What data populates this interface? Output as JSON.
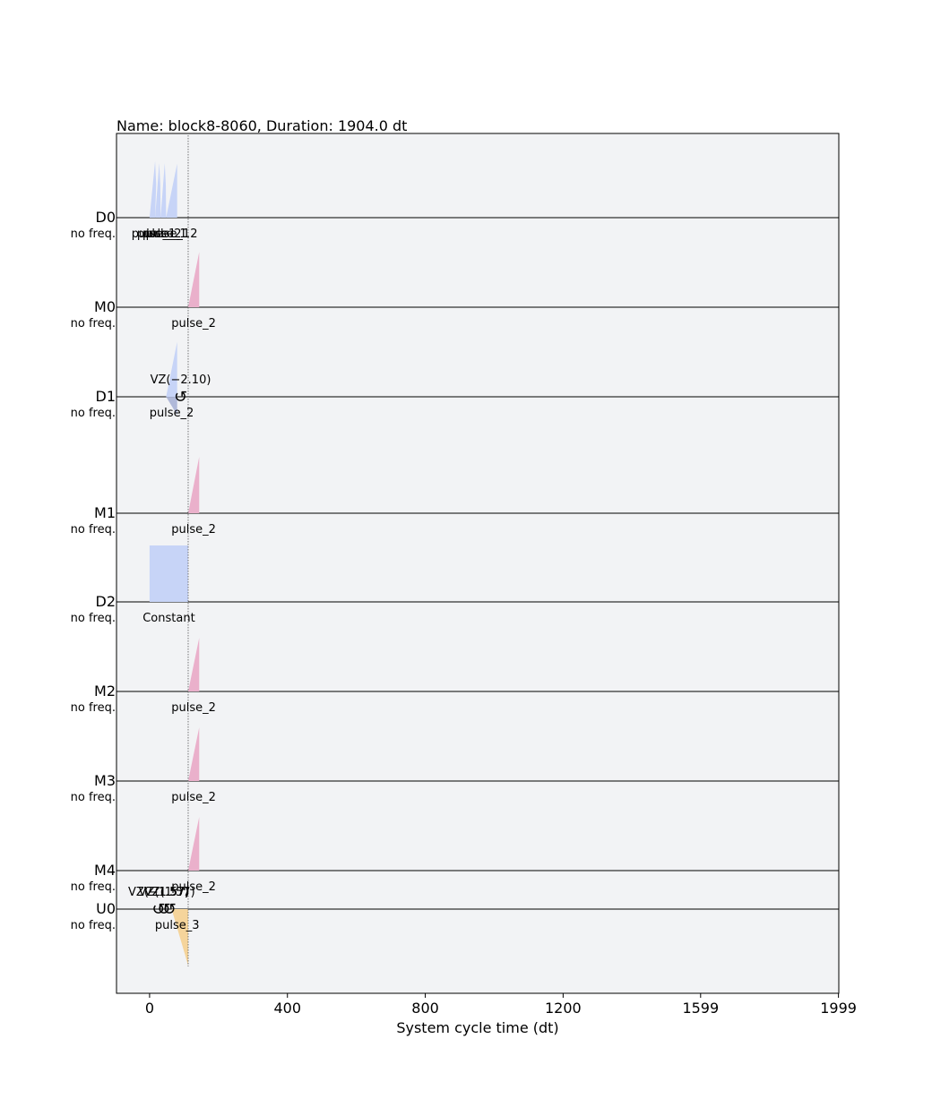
{
  "chart_data": {
    "type": "pulse-schedule",
    "title": "Name: block8-8060, Duration: 1904.0 dt",
    "xlabel": "System cycle time (dt)",
    "xlim": [
      -96,
      2000
    ],
    "xticks": [
      0,
      400,
      800,
      1200,
      1599,
      1999
    ],
    "xtick_labels": [
      "0",
      "400",
      "800",
      "1200",
      "1599",
      "1999"
    ],
    "barrier_t": 112,
    "colors": {
      "panel": "#f2f3f5",
      "drive": "#c7d4f7",
      "drive_imag": "#a9b3d6",
      "measure": "#eab0cb",
      "control": "#f5d49b"
    },
    "channels": [
      {
        "name": "D0",
        "freq": "no freq.",
        "pulses": [
          {
            "kind": "drive",
            "shape": "spike",
            "t0": 0,
            "t1": 16,
            "peak": 16,
            "amp": 0.9
          },
          {
            "kind": "drive",
            "shape": "spike",
            "t0": 16,
            "t1": 32,
            "peak": 28,
            "amp": 0.87
          },
          {
            "kind": "drive",
            "shape": "spike",
            "t0": 32,
            "t1": 48,
            "peak": 44,
            "amp": 0.87
          },
          {
            "kind": "drive",
            "shape": "ramp",
            "t0": 48,
            "t1": 80,
            "amp": 0.86
          }
        ],
        "labels": [
          {
            "t": 12,
            "text": "pulse_1"
          },
          {
            "t": 28,
            "text": "pulse_2"
          },
          {
            "t": 44,
            "text": "pulse_1"
          },
          {
            "t": 64,
            "text": "pulse_12"
          }
        ]
      },
      {
        "name": "M0",
        "freq": "no freq.",
        "pulses": [
          {
            "kind": "measure",
            "shape": "ramp",
            "t0": 112,
            "t1": 144,
            "amp": 0.88
          }
        ],
        "labels": [
          {
            "t": 128,
            "text": "pulse_2"
          }
        ]
      },
      {
        "name": "D1",
        "freq": "no freq.",
        "pulses": [
          {
            "kind": "drive",
            "shape": "ramp",
            "t0": 48,
            "t1": 80,
            "amp": 0.9
          },
          {
            "kind": "drive_imag",
            "shape": "ramp",
            "t0": 48,
            "t1": 80,
            "amp": -0.3
          }
        ],
        "labels": [
          {
            "t": 64,
            "text": "pulse_2"
          }
        ],
        "frame_changes": [
          {
            "t": 64,
            "text": "VZ(−2.10)"
          }
        ]
      },
      {
        "name": "M1",
        "freq": "no freq.",
        "pulses": [
          {
            "kind": "measure",
            "shape": "ramp",
            "t0": 112,
            "t1": 144,
            "amp": 0.9
          }
        ],
        "labels": [
          {
            "t": 128,
            "text": "pulse_2"
          }
        ]
      },
      {
        "name": "D2",
        "freq": "no freq.",
        "pulses": [
          {
            "kind": "drive",
            "shape": "flat",
            "t0": 0,
            "t1": 112,
            "amp": 0.9
          }
        ],
        "labels": [
          {
            "t": 56,
            "text": "Constant"
          }
        ]
      },
      {
        "name": "M2",
        "freq": "no freq.",
        "pulses": [
          {
            "kind": "measure",
            "shape": "ramp",
            "t0": 112,
            "t1": 144,
            "amp": 0.88
          }
        ],
        "labels": [
          {
            "t": 128,
            "text": "pulse_2"
          }
        ]
      },
      {
        "name": "M3",
        "freq": "no freq.",
        "pulses": [
          {
            "kind": "measure",
            "shape": "ramp",
            "t0": 112,
            "t1": 144,
            "amp": 0.88
          }
        ],
        "labels": [
          {
            "t": 128,
            "text": "pulse_2"
          }
        ]
      },
      {
        "name": "M4",
        "freq": "no freq.",
        "pulses": [
          {
            "kind": "measure",
            "shape": "ramp",
            "t0": 112,
            "t1": 144,
            "amp": 0.88
          }
        ],
        "labels": [
          {
            "t": 128,
            "text": "pulse_2"
          }
        ]
      },
      {
        "name": "U0",
        "freq": "no freq.",
        "pulses": [
          {
            "kind": "control",
            "shape": "ramp_down",
            "t0": 64,
            "t1": 112,
            "amp": -0.9
          }
        ],
        "labels": [
          {
            "t": 80,
            "text": "pulse_3"
          }
        ],
        "frame_changes": [
          {
            "t": 0,
            "text": "VZ(−1.57)"
          },
          {
            "t": 16,
            "text": "VZ(1.57)"
          },
          {
            "t": 32,
            "text": "VZ(1.57)"
          }
        ]
      }
    ]
  }
}
